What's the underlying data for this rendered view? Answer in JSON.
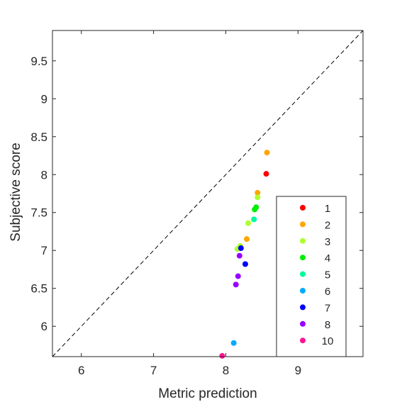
{
  "chart_data": {
    "type": "scatter",
    "title": "",
    "xlabel": "Metric prediction",
    "ylabel": "Subjective score",
    "xlim": [
      5.6,
      9.9
    ],
    "ylim": [
      5.6,
      9.9
    ],
    "xticks": [
      6,
      7,
      8,
      9
    ],
    "yticks": [
      6,
      6.5,
      7,
      7.5,
      8,
      8.5,
      9,
      9.5
    ],
    "grid": false,
    "reference_line": "y = x (dashed)",
    "legend_position": "bottom-right",
    "series": [
      {
        "name": "1",
        "color": "#ff0000",
        "points": [
          [
            8.56,
            8.01
          ]
        ]
      },
      {
        "name": "2",
        "color": "#ffa500",
        "points": [
          [
            8.57,
            8.29
          ],
          [
            8.44,
            7.76
          ],
          [
            8.29,
            7.15
          ]
        ]
      },
      {
        "name": "3",
        "color": "#adff2f",
        "points": [
          [
            8.44,
            7.7
          ],
          [
            8.31,
            7.36
          ],
          [
            8.16,
            7.02
          ],
          [
            8.2,
            7.06
          ]
        ]
      },
      {
        "name": "4",
        "color": "#00ee00",
        "points": [
          [
            8.42,
            7.57
          ],
          [
            8.4,
            7.54
          ]
        ]
      },
      {
        "name": "5",
        "color": "#00fa9a",
        "points": [
          [
            8.39,
            7.41
          ]
        ]
      },
      {
        "name": "6",
        "color": "#00aaff",
        "points": [
          [
            8.11,
            5.78
          ]
        ]
      },
      {
        "name": "7",
        "color": "#0000ff",
        "points": [
          [
            8.21,
            7.03
          ],
          [
            8.27,
            6.82
          ]
        ]
      },
      {
        "name": "8",
        "color": "#9900ff",
        "points": [
          [
            8.19,
            6.93
          ],
          [
            8.17,
            6.66
          ],
          [
            8.14,
            6.55
          ]
        ]
      },
      {
        "name": "10",
        "color": "#ff1493",
        "points": [
          [
            7.95,
            5.61
          ]
        ]
      }
    ]
  }
}
